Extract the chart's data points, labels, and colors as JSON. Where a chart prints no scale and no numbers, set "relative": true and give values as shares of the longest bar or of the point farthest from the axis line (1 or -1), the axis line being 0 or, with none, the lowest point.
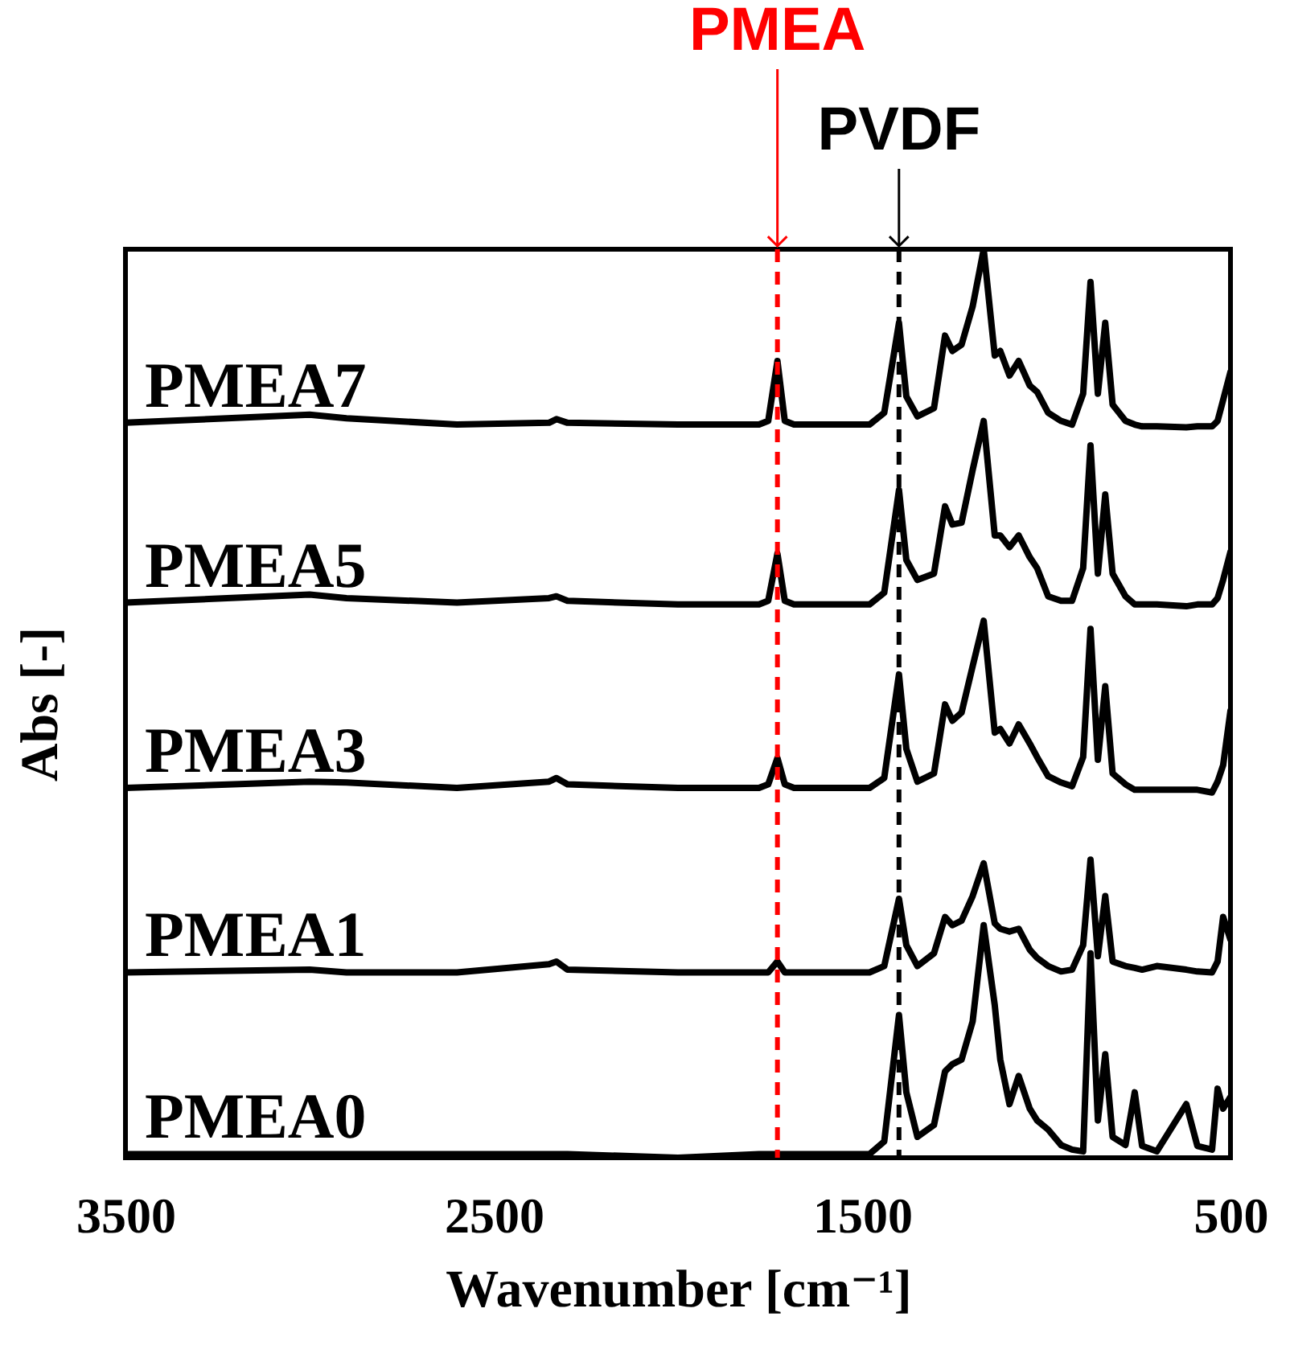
{
  "chart_data": {
    "type": "line",
    "relative": true,
    "xlabel": "Wavenumber [cm⁻¹]",
    "ylabel": "Abs [-]",
    "xlim": [
      3500,
      500
    ],
    "xticks": [
      3500,
      2500,
      1500,
      500
    ],
    "x": [
      3500,
      3000,
      2900,
      2600,
      2350,
      2330,
      2300,
      2000,
      1780,
      1755,
      1730,
      1710,
      1685,
      1480,
      1440,
      1400,
      1380,
      1350,
      1305,
      1275,
      1255,
      1230,
      1200,
      1170,
      1140,
      1125,
      1100,
      1075,
      1045,
      1025,
      995,
      960,
      930,
      900,
      880,
      860,
      840,
      820,
      785,
      760,
      740,
      700,
      620,
      590,
      550,
      535,
      520,
      500
    ],
    "series": [
      {
        "name": "PMEA7",
        "color": "#000000",
        "values": [
          0.809,
          0.818,
          0.814,
          0.807,
          0.809,
          0.813,
          0.809,
          0.807,
          0.807,
          0.811,
          0.877,
          0.811,
          0.807,
          0.807,
          0.82,
          0.919,
          0.838,
          0.816,
          0.825,
          0.905,
          0.888,
          0.895,
          0.937,
          1,
          0.883,
          0.888,
          0.861,
          0.877,
          0.85,
          0.843,
          0.82,
          0.811,
          0.807,
          0.841,
          0.964,
          0.841,
          0.919,
          0.829,
          0.811,
          0.807,
          0.805,
          0.805,
          0.804,
          0.805,
          0.805,
          0.811,
          0.834,
          0.865
        ]
      },
      {
        "name": "PMEA5",
        "color": "#000000",
        "values": [
          0.611,
          0.62,
          0.616,
          0.611,
          0.616,
          0.618,
          0.613,
          0.609,
          0.609,
          0.613,
          0.665,
          0.613,
          0.609,
          0.609,
          0.622,
          0.735,
          0.658,
          0.636,
          0.643,
          0.717,
          0.697,
          0.699,
          0.757,
          0.811,
          0.685,
          0.685,
          0.672,
          0.685,
          0.661,
          0.649,
          0.618,
          0.613,
          0.613,
          0.649,
          0.784,
          0.643,
          0.73,
          0.643,
          0.618,
          0.609,
          0.609,
          0.609,
          0.607,
          0.609,
          0.609,
          0.616,
          0.636,
          0.667
        ]
      },
      {
        "name": "PMEA3",
        "color": "#000000",
        "values": [
          0.407,
          0.414,
          0.413,
          0.407,
          0.414,
          0.418,
          0.411,
          0.407,
          0.407,
          0.411,
          0.44,
          0.411,
          0.407,
          0.407,
          0.418,
          0.532,
          0.45,
          0.414,
          0.423,
          0.499,
          0.481,
          0.49,
          0.541,
          0.591,
          0.468,
          0.472,
          0.456,
          0.477,
          0.456,
          0.441,
          0.42,
          0.413,
          0.409,
          0.441,
          0.582,
          0.438,
          0.519,
          0.423,
          0.411,
          0.405,
          0.405,
          0.405,
          0.405,
          0.405,
          0.402,
          0.414,
          0.432,
          0.492
        ]
      },
      {
        "name": "PMEA1",
        "color": "#000000",
        "values": [
          0.204,
          0.207,
          0.204,
          0.204,
          0.213,
          0.216,
          0.207,
          0.204,
          0.204,
          0.204,
          0.216,
          0.204,
          0.204,
          0.204,
          0.211,
          0.285,
          0.234,
          0.211,
          0.225,
          0.265,
          0.256,
          0.261,
          0.288,
          0.324,
          0.258,
          0.252,
          0.249,
          0.252,
          0.229,
          0.22,
          0.211,
          0.205,
          0.207,
          0.234,
          0.328,
          0.222,
          0.288,
          0.216,
          0.211,
          0.209,
          0.207,
          0.211,
          0.207,
          0.205,
          0.204,
          0.216,
          0.265,
          0.24
        ]
      },
      {
        "name": "PMEA0",
        "color": "#000000",
        "values": [
          0.004,
          0.004,
          0.004,
          0.004,
          0.004,
          0.004,
          0.004,
          0,
          0.004,
          0.004,
          0.004,
          0.004,
          0.004,
          0.004,
          0.018,
          0.157,
          0.072,
          0.023,
          0.036,
          0.095,
          0.103,
          0.108,
          0.15,
          0.256,
          0.168,
          0.108,
          0.059,
          0.09,
          0.054,
          0.041,
          0.031,
          0.014,
          0.009,
          0.007,
          0.225,
          0.041,
          0.114,
          0.023,
          0.014,
          0.072,
          0.013,
          0.007,
          0.059,
          0.013,
          0.009,
          0.076,
          0.054,
          0.067
        ]
      }
    ],
    "ref_lines": [
      {
        "axis": "x",
        "value": 1730,
        "label": "PMEA",
        "color": "#ff0000",
        "line_style": "dashed"
      },
      {
        "axis": "x",
        "value": 1400,
        "label": "PVDF",
        "color": "#000000",
        "line_style": "dashed"
      }
    ]
  }
}
